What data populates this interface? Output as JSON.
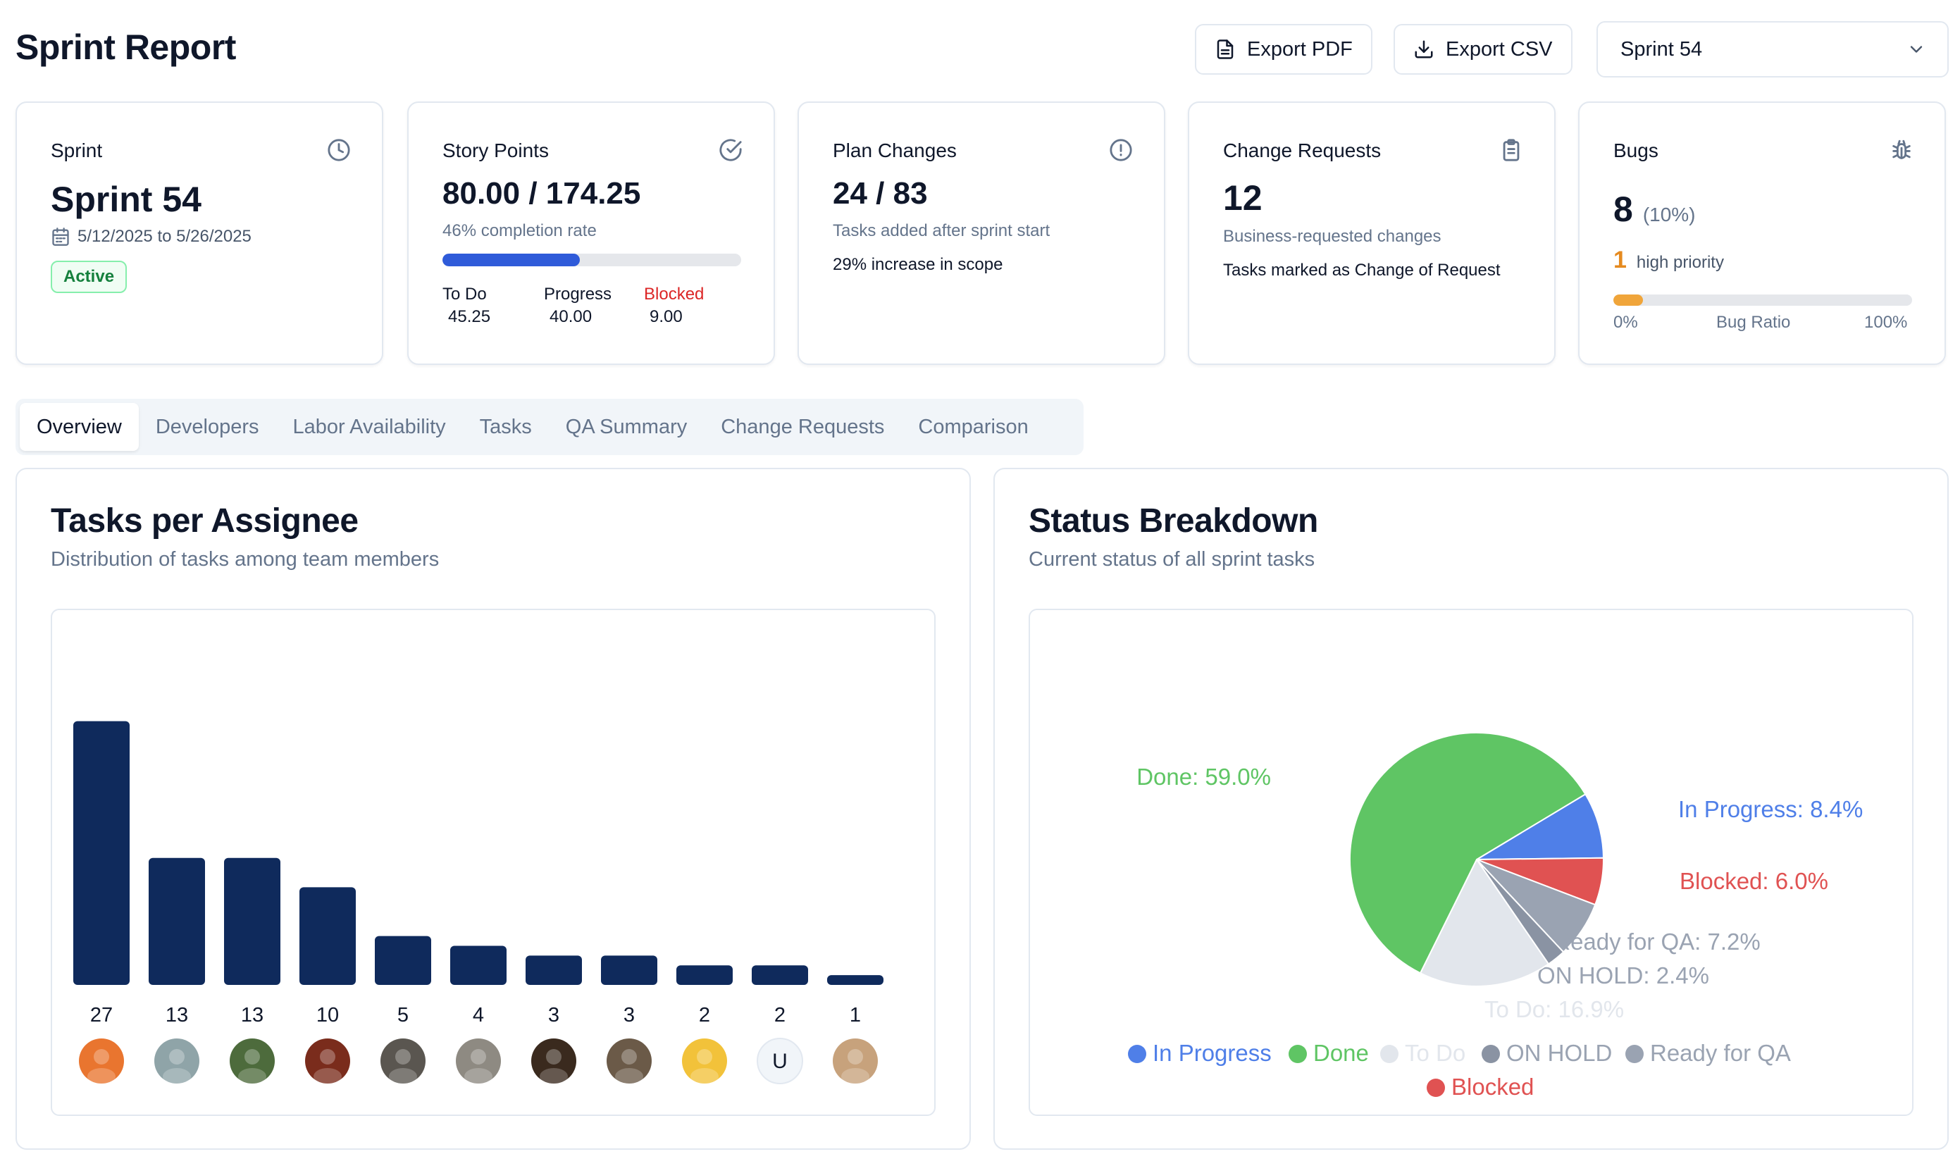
{
  "header": {
    "title": "Sprint Report",
    "export_pdf": "Export PDF",
    "export_csv": "Export CSV",
    "sprint_select": "Sprint 54"
  },
  "cards": {
    "sprint": {
      "title": "Sprint",
      "value": "Sprint 54",
      "dates": "5/12/2025 to 5/26/2025",
      "status": "Active"
    },
    "story_points": {
      "title": "Story Points",
      "value": "80.00 / 174.25",
      "sub": "46% completion rate",
      "progress": 0.46,
      "todo_label": "To Do",
      "todo_value": "45.25",
      "progress_label": "Progress",
      "progress_value": "40.00",
      "blocked_label": "Blocked",
      "blocked_value": "9.00"
    },
    "plan_changes": {
      "title": "Plan Changes",
      "value": "24 / 83",
      "sub": "Tasks added after sprint start",
      "note": "29% increase in scope"
    },
    "change_requests": {
      "title": "Change Requests",
      "value": "12",
      "sub": "Business-requested changes",
      "note": "Tasks marked as Change of Request"
    },
    "bugs": {
      "title": "Bugs",
      "value": "8",
      "pct": "(10%)",
      "high_count": "1",
      "high_label": "high priority",
      "ratio": 0.1,
      "min_label": "0%",
      "mid_label": "Bug Ratio",
      "max_label": "100%"
    }
  },
  "tabs": [
    "Overview",
    "Developers",
    "Labor Availability",
    "Tasks",
    "QA Summary",
    "Change Requests",
    "Comparison"
  ],
  "active_tab": "Overview",
  "tasks_panel": {
    "title": "Tasks per Assignee",
    "subtitle": "Distribution of tasks among team members"
  },
  "status_panel": {
    "title": "Status Breakdown",
    "subtitle": "Current status of all sprint tasks"
  },
  "colors": {
    "bar": "#0f2a5c",
    "in_progress": "#4f7fe8",
    "done": "#5fc564",
    "todo": "#e2e6ec",
    "on_hold": "#9aa3b2",
    "ready_for_qa": "#9aa3b2",
    "blocked": "#e05252",
    "progress_blue": "#2f5bd9",
    "bug_orange": "#f0a53a"
  },
  "chart_data": [
    {
      "type": "bar",
      "categories": [
        "assignee-1",
        "assignee-2",
        "assignee-3",
        "assignee-4",
        "assignee-5",
        "assignee-6",
        "assignee-7",
        "assignee-8",
        "assignee-9",
        "U",
        "assignee-11"
      ],
      "values": [
        27,
        13,
        13,
        10,
        5,
        4,
        3,
        3,
        2,
        2,
        1
      ],
      "avatar_colors": [
        "#e9752f",
        "#8fa4a8",
        "#4d6b3c",
        "#7a2c1c",
        "#5a5650",
        "#8e8a82",
        "#3a2a1e",
        "#6b5a48",
        "#f2c23a",
        "#f1f5f9",
        "#c7a27c"
      ],
      "ylim": [
        0,
        30
      ],
      "title": "Tasks per Assignee"
    },
    {
      "type": "pie",
      "title": "Status Breakdown",
      "slices": [
        {
          "label": "In Progress",
          "value": 8.4,
          "display": "In Progress: 8.4%",
          "color": "#4f7fe8"
        },
        {
          "label": "Blocked",
          "value": 6.0,
          "display": "Blocked: 6.0%",
          "color": "#e05252"
        },
        {
          "label": "Ready for QA",
          "value": 7.2,
          "display": "Ready for QA: 7.2%",
          "color": "#9aa3b2"
        },
        {
          "label": "ON HOLD",
          "value": 2.4,
          "display": "ON HOLD: 2.4%",
          "color": "#8a93a3"
        },
        {
          "label": "To Do",
          "value": 16.9,
          "display": "To Do: 16.9%",
          "color": "#e2e6ec"
        },
        {
          "label": "Done",
          "value": 59.0,
          "display": "Done: 59.0%",
          "color": "#5fc564"
        }
      ],
      "legend": [
        "In Progress",
        "Done",
        "To Do",
        "ON HOLD",
        "Ready for QA",
        "Blocked"
      ],
      "legend_position": "bottom"
    }
  ]
}
